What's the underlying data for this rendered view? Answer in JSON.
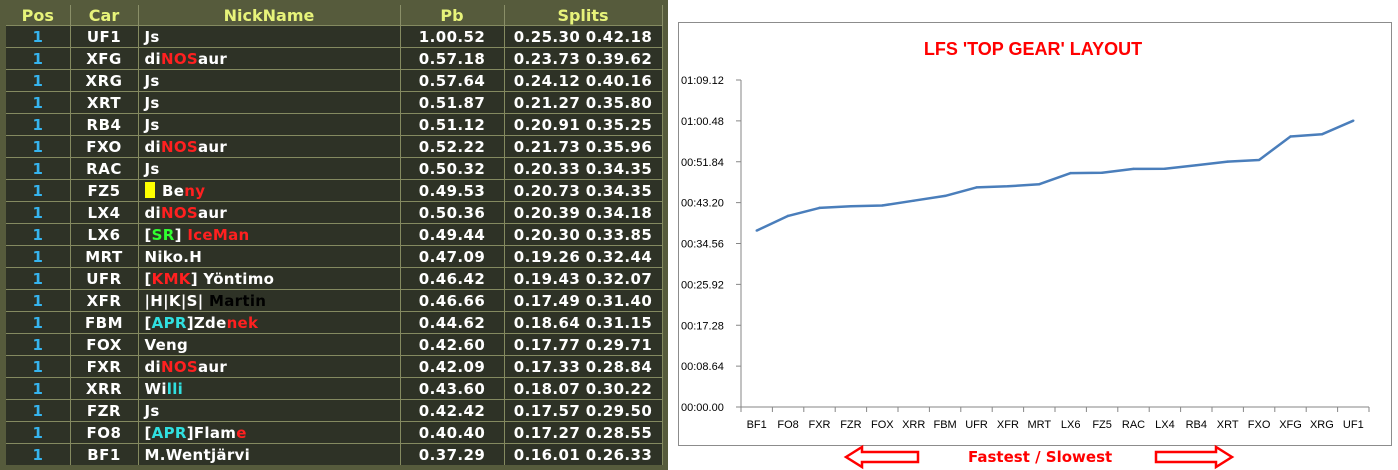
{
  "leaderboard": {
    "headers": {
      "pos": "Pos",
      "car": "Car",
      "nick": "NickName",
      "pb": "Pb",
      "splits": "Splits"
    },
    "rows": [
      {
        "pos": "1",
        "car": "UF1",
        "nick": [
          {
            "t": "Js",
            "c": "#ffffff"
          }
        ],
        "pb": "1.00.52",
        "splits": "0.25.30 0.42.18"
      },
      {
        "pos": "1",
        "car": "XFG",
        "nick": [
          {
            "t": "di",
            "c": "#ffffff"
          },
          {
            "t": "NOS",
            "c": "#ff2020"
          },
          {
            "t": "aur",
            "c": "#ffffff"
          }
        ],
        "pb": "0.57.18",
        "splits": "0.23.73 0.39.62"
      },
      {
        "pos": "1",
        "car": "XRG",
        "nick": [
          {
            "t": "Js",
            "c": "#ffffff"
          }
        ],
        "pb": "0.57.64",
        "splits": "0.24.12 0.40.16"
      },
      {
        "pos": "1",
        "car": "XRT",
        "nick": [
          {
            "t": "Js",
            "c": "#ffffff"
          }
        ],
        "pb": "0.51.87",
        "splits": "0.21.27 0.35.80"
      },
      {
        "pos": "1",
        "car": "RB4",
        "nick": [
          {
            "t": "Js",
            "c": "#ffffff"
          }
        ],
        "pb": "0.51.12",
        "splits": "0.20.91 0.35.25"
      },
      {
        "pos": "1",
        "car": "FXO",
        "nick": [
          {
            "t": "di",
            "c": "#ffffff"
          },
          {
            "t": "NOS",
            "c": "#ff2020"
          },
          {
            "t": "aur",
            "c": "#ffffff"
          }
        ],
        "pb": "0.52.22",
        "splits": "0.21.73 0.35.96"
      },
      {
        "pos": "1",
        "car": "RAC",
        "nick": [
          {
            "t": "Js",
            "c": "#ffffff"
          }
        ],
        "pb": "0.50.32",
        "splits": "0.20.33 0.34.35"
      },
      {
        "pos": "1",
        "car": "FZ5",
        "flag": true,
        "nick": [
          {
            "t": " Be",
            "c": "#ffffff"
          },
          {
            "t": "ny",
            "c": "#ff2020"
          }
        ],
        "pb": "0.49.53",
        "splits": "0.20.73 0.34.35"
      },
      {
        "pos": "1",
        "car": "LX4",
        "nick": [
          {
            "t": "di",
            "c": "#ffffff"
          },
          {
            "t": "NOS",
            "c": "#ff2020"
          },
          {
            "t": "aur",
            "c": "#ffffff"
          }
        ],
        "pb": "0.50.36",
        "splits": "0.20.39 0.34.18"
      },
      {
        "pos": "1",
        "car": "LX6",
        "nick": [
          {
            "t": "[",
            "c": "#ffffff"
          },
          {
            "t": "SR",
            "c": "#30ff30"
          },
          {
            "t": "] ",
            "c": "#ffffff"
          },
          {
            "t": "IceMan",
            "c": "#ff2020"
          }
        ],
        "pb": "0.49.44",
        "splits": "0.20.30 0.33.85"
      },
      {
        "pos": "1",
        "car": "MRT",
        "nick": [
          {
            "t": "Niko.H",
            "c": "#ffffff"
          }
        ],
        "pb": "0.47.09",
        "splits": "0.19.26 0.32.44"
      },
      {
        "pos": "1",
        "car": "UFR",
        "nick": [
          {
            "t": "[",
            "c": "#ffffff"
          },
          {
            "t": "KMK",
            "c": "#ff2020"
          },
          {
            "t": "] Yöntimo",
            "c": "#ffffff"
          }
        ],
        "pb": "0.46.42",
        "splits": "0.19.43 0.32.07"
      },
      {
        "pos": "1",
        "car": "XFR",
        "nick": [
          {
            "t": "|H|K|S| ",
            "c": "#ffffff"
          },
          {
            "t": "Martin",
            "c": "#000000"
          }
        ],
        "pb": "0.46.66",
        "splits": "0.17.49 0.31.40"
      },
      {
        "pos": "1",
        "car": "FBM",
        "nick": [
          {
            "t": "[",
            "c": "#ffffff"
          },
          {
            "t": "APR",
            "c": "#30e0e0"
          },
          {
            "t": "]Zde",
            "c": "#ffffff"
          },
          {
            "t": "nek",
            "c": "#ff2020"
          }
        ],
        "pb": "0.44.62",
        "splits": "0.18.64 0.31.15"
      },
      {
        "pos": "1",
        "car": "FOX",
        "nick": [
          {
            "t": "Veng",
            "c": "#ffffff"
          }
        ],
        "pb": "0.42.60",
        "splits": "0.17.77 0.29.71"
      },
      {
        "pos": "1",
        "car": "FXR",
        "nick": [
          {
            "t": "di",
            "c": "#ffffff"
          },
          {
            "t": "NOS",
            "c": "#ff2020"
          },
          {
            "t": "aur",
            "c": "#ffffff"
          }
        ],
        "pb": "0.42.09",
        "splits": "0.17.33 0.28.84"
      },
      {
        "pos": "1",
        "car": "XRR",
        "nick": [
          {
            "t": "Wi",
            "c": "#ffffff"
          },
          {
            "t": "lli",
            "c": "#30e0e0"
          }
        ],
        "pb": "0.43.60",
        "splits": "0.18.07 0.30.22"
      },
      {
        "pos": "1",
        "car": "FZR",
        "nick": [
          {
            "t": "Js",
            "c": "#ffffff"
          }
        ],
        "pb": "0.42.42",
        "splits": "0.17.57 0.29.50"
      },
      {
        "pos": "1",
        "car": "FO8",
        "nick": [
          {
            "t": "[",
            "c": "#ffffff"
          },
          {
            "t": "APR",
            "c": "#30e0e0"
          },
          {
            "t": "]Flam",
            "c": "#ffffff"
          },
          {
            "t": "e",
            "c": "#ff2020"
          }
        ],
        "pb": "0.40.40",
        "splits": "0.17.27 0.28.55"
      },
      {
        "pos": "1",
        "car": "BF1",
        "nick": [
          {
            "t": "M.Wentjärvi",
            "c": "#ffffff"
          }
        ],
        "pb": "0.37.29",
        "splits": "0.16.01 0.26.33"
      }
    ]
  },
  "chart_data": {
    "type": "line",
    "title": "LFS 'TOP GEAR' LAYOUT",
    "categories": [
      "BF1",
      "FO8",
      "FXR",
      "FZR",
      "FOX",
      "XRR",
      "FBM",
      "UFR",
      "XFR",
      "MRT",
      "LX6",
      "FZ5",
      "RAC",
      "LX4",
      "RB4",
      "XRT",
      "FXO",
      "XFG",
      "XRG",
      "UF1"
    ],
    "values": [
      37.29,
      40.4,
      42.09,
      42.42,
      42.6,
      43.6,
      44.62,
      46.42,
      46.66,
      47.09,
      49.44,
      49.53,
      50.32,
      50.36,
      51.12,
      51.87,
      52.22,
      57.18,
      57.64,
      60.52
    ],
    "value_unit": "seconds",
    "yticks": [
      "00:00.00",
      "00:08.64",
      "00:17.28",
      "00:25.92",
      "00:34.56",
      "00:43.20",
      "00:51.84",
      "01:00.48",
      "01:09.12"
    ],
    "ylim": [
      0,
      69.12
    ],
    "line_color": "#4a7ebb",
    "grid": false,
    "legend": "none",
    "xlabel": "",
    "ylabel": ""
  },
  "footer": {
    "label": "Fastest / Slowest",
    "arrow_color": "#ff0000"
  }
}
